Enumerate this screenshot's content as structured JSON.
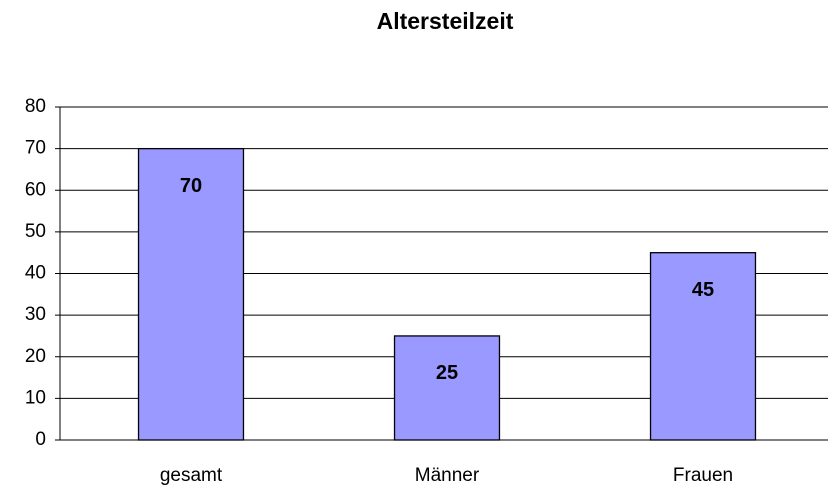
{
  "chart_data": {
    "type": "bar",
    "title": "Altersteilzeit",
    "categories": [
      "gesamt",
      "Männer",
      "Frauen"
    ],
    "values": [
      70,
      25,
      45
    ],
    "color": "#9999ff",
    "ylim": [
      0,
      80
    ],
    "yticks": [
      0,
      10,
      20,
      30,
      40,
      50,
      60,
      70,
      80
    ],
    "grid": true,
    "data_labels": true
  }
}
